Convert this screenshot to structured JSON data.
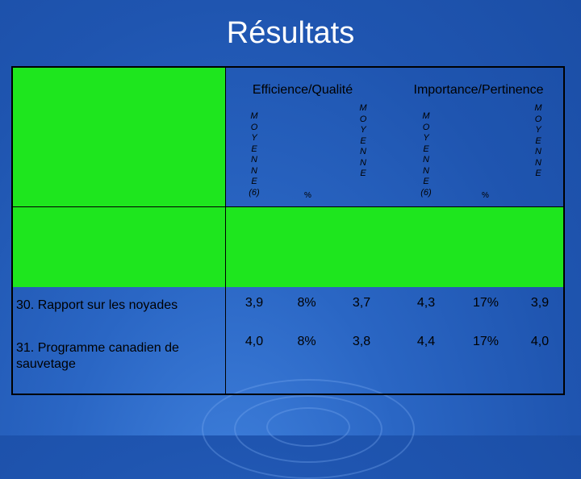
{
  "slide": {
    "title": "Résultats"
  },
  "headers": {
    "group1": "Efficience/Qualité",
    "group2": "Importance/Pertinence",
    "col_moyenne_6": [
      "M",
      "O",
      "Y",
      "E",
      "N",
      "N",
      "E",
      "(6)"
    ],
    "col_moyenne": [
      "M",
      "O",
      "Y",
      "E",
      "N",
      "N",
      "E"
    ],
    "col_pct": "%"
  },
  "rows": [
    {
      "label": "30. Rapport sur les noyades",
      "values": [
        "3,9",
        "8%",
        "3,7",
        "4,3",
        "17%",
        "3,9"
      ]
    },
    {
      "label": "31. Programme canadien de sauvetage",
      "values": [
        "4,0",
        "8%",
        "3,8",
        "4,4",
        "17%",
        "4,0"
      ]
    }
  ],
  "colors": {
    "background": "#1f55b0",
    "green": "#1ee61e",
    "title": "#ffffff"
  }
}
